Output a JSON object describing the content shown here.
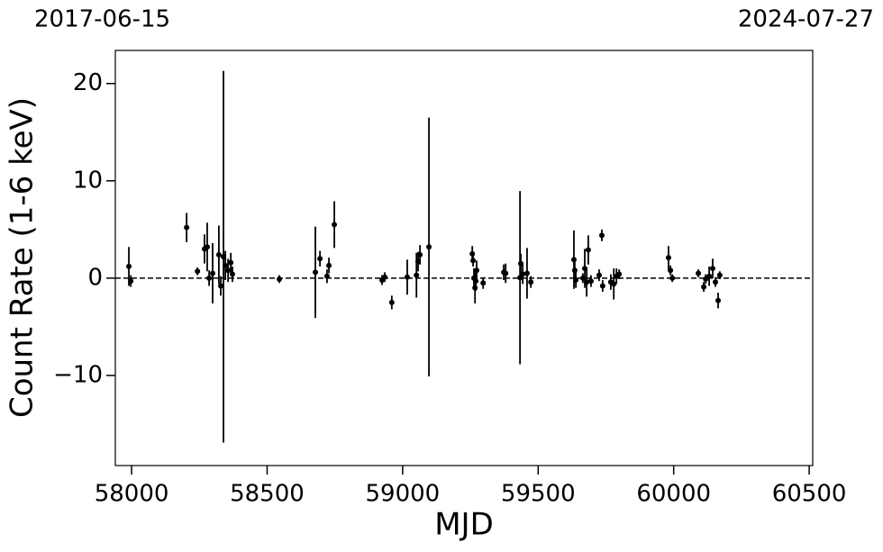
{
  "chart_data": {
    "type": "scatter",
    "top_labels": [
      "2017-06-15",
      "2024-07-27"
    ],
    "x_label": "MJD",
    "y_label": "Count Rate (1-6 keV)",
    "xlim": [
      57940,
      60513
    ],
    "ylim": [
      -19.26,
      23.4
    ],
    "xticks": [
      58000,
      58500,
      59000,
      59500,
      60000,
      60500
    ],
    "yticks": [
      {
        "value": -10,
        "label": "−10"
      },
      0,
      10,
      20
    ],
    "hline": 0,
    "series": [
      {
        "color": "#000000",
        "x": [
          57990,
          57997,
          58203,
          58243,
          58269,
          58279,
          58286,
          58299,
          58322,
          58329,
          58339,
          58346,
          58356,
          58366,
          58372,
          58545,
          58678,
          58695,
          58721,
          58728,
          58748,
          58924,
          58934,
          58960,
          59017,
          59051,
          59057,
          59064,
          59097,
          59257,
          59260,
          59263,
          59267,
          59270,
          59273,
          59297,
          59373,
          59380,
          59433,
          59436,
          59443,
          59459,
          59473,
          59632,
          59635,
          59639,
          59665,
          59672,
          59679,
          59685,
          59695,
          59725,
          59735,
          59738,
          59768,
          59779,
          59789,
          59799,
          59981,
          59988,
          59995,
          60091,
          60111,
          60118,
          60131,
          60144,
          60154,
          60164,
          60170
        ],
        "values": [
          1.2,
          -0.3,
          5.2,
          0.7,
          3.0,
          3.2,
          0,
          0.5,
          2.4,
          -0.8,
          2.2,
          1.3,
          0.8,
          1.6,
          0.4,
          -0.1,
          0.6,
          2.0,
          0.2,
          1.3,
          5.5,
          -0.2,
          0.1,
          -2.5,
          0.1,
          0.3,
          1.7,
          2.4,
          3.2,
          2.5,
          1.8,
          0,
          -1.0,
          -0.3,
          0.8,
          -0.5,
          0.6,
          0.5,
          0.05,
          1.5,
          0.4,
          0.5,
          -0.4,
          1.9,
          0.8,
          -0.2,
          0,
          1.0,
          -0.4,
          2.9,
          -0.3,
          0.3,
          4.4,
          -0.8,
          -0.4,
          -0.6,
          0.2,
          0.4,
          2.1,
          0.8,
          0,
          0.5,
          -0.9,
          -0.1,
          0.2,
          1.0,
          -0.4,
          -2.3,
          0.3
        ],
        "errors": [
          2.0,
          0.6,
          1.5,
          0.4,
          1.5,
          2.5,
          0.8,
          3.1,
          3.0,
          1.0,
          19.1,
          1.5,
          1.2,
          1.0,
          0.8,
          0.4,
          4.7,
          0.8,
          0.7,
          0.8,
          2.4,
          0.5,
          0.5,
          0.7,
          1.8,
          2.3,
          1.0,
          1.0,
          13.3,
          0.8,
          0.6,
          1.0,
          1.6,
          1.0,
          1.0,
          0.6,
          0.8,
          1.0,
          8.9,
          1.0,
          1.0,
          2.6,
          0.6,
          3.0,
          1.0,
          0.8,
          0.5,
          2.0,
          1.5,
          1.5,
          0.6,
          0.6,
          0.6,
          0.6,
          0.8,
          1.6,
          0.8,
          0.5,
          1.2,
          0.5,
          0.4,
          0.4,
          0.5,
          0.5,
          1.0,
          1.0,
          0.5,
          0.8,
          0.4
        ]
      }
    ]
  }
}
